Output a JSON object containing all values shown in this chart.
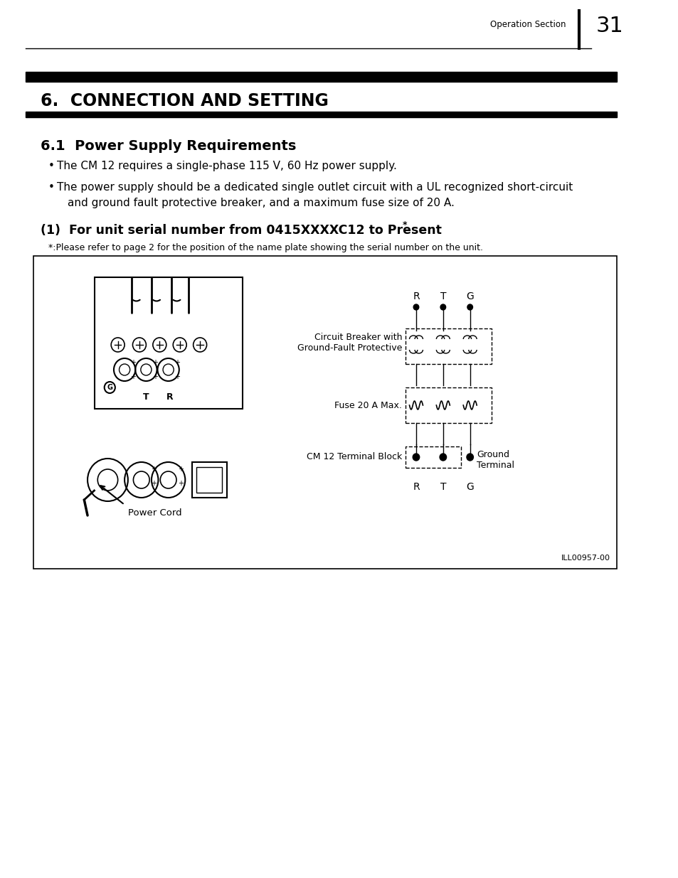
{
  "page_num": "31",
  "header_text": "Operation Section",
  "chapter_title": "6.  CONNECTION AND SETTING",
  "section_title": "6.1  Power Supply Requirements",
  "bullet1": "The CM 12 requires a single-phase 115 V, 60 Hz power supply.",
  "bullet2": "The power supply should be a dedicated single outlet circuit with a UL recognized short-circuit\n    and ground fault protective breaker, and a maximum fuse size of 20 A.",
  "subsection_title": "(1)  For unit serial number from 0415XXXXC12 to Present",
  "superscript": "*",
  "footnote": "*:Please refer to page 2 for the position of the name plate showing the serial number on the unit.",
  "diagram_label_circuit_breaker": "Circuit Breaker with\nGround-Fault Protective",
  "diagram_label_fuse": "Fuse 20 A Max.",
  "diagram_label_terminal": "CM 12 Terminal Block",
  "diagram_label_ground": "Ground\nTerminal",
  "diagram_label_power_cord": "Power Cord",
  "diagram_label_R1": "R",
  "diagram_label_T1": "T",
  "diagram_label_G1": "G",
  "diagram_label_R2": "R",
  "diagram_label_T2": "T",
  "diagram_label_G2": "G",
  "ill_code": "ILL00957-00",
  "bg_color": "#ffffff",
  "text_color": "#000000",
  "box_bg": "#ffffff"
}
